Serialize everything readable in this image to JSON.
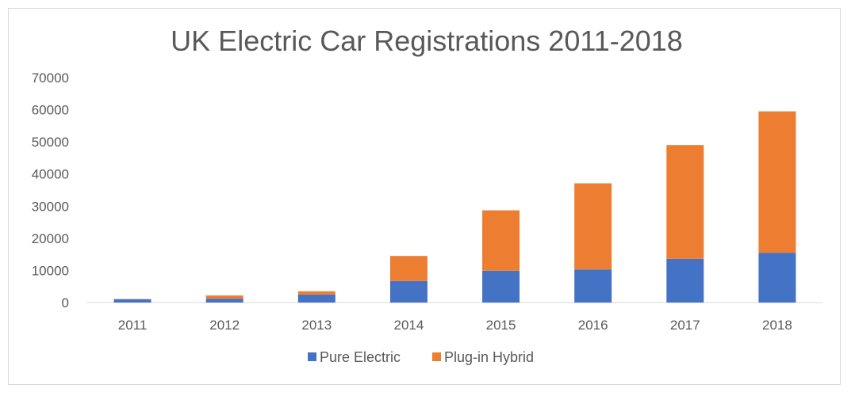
{
  "chart_data": {
    "type": "bar",
    "stacked": true,
    "title": "UK Electric Car Registrations 2011-2018",
    "xlabel": "",
    "ylabel": "",
    "categories": [
      "2011",
      "2012",
      "2013",
      "2014",
      "2015",
      "2016",
      "2017",
      "2018"
    ],
    "ylim": [
      0,
      70000
    ],
    "yticks": [
      0,
      10000,
      20000,
      30000,
      40000,
      50000,
      60000,
      70000
    ],
    "grid": false,
    "legend": "bottom",
    "series": [
      {
        "name": "Pure Electric",
        "color": "#4472c4",
        "values": [
          1000,
          1200,
          2500,
          6700,
          9900,
          10300,
          13600,
          15500
        ]
      },
      {
        "name": "Plug-in Hybrid",
        "color": "#ed7d31",
        "values": [
          100,
          1000,
          1000,
          7800,
          18800,
          26800,
          35400,
          44000
        ]
      }
    ]
  }
}
